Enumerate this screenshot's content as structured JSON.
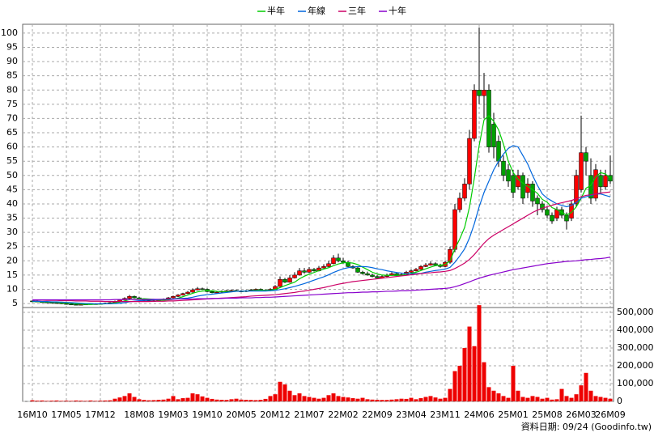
{
  "chart_data": {
    "type": "candlestick",
    "categories": [
      "16M10",
      null,
      null,
      null,
      null,
      null,
      null,
      "17M05",
      null,
      null,
      null,
      null,
      null,
      null,
      "17M12",
      null,
      null,
      null,
      null,
      null,
      null,
      null,
      "18M08",
      null,
      null,
      null,
      null,
      null,
      null,
      "19M03",
      null,
      null,
      null,
      null,
      null,
      null,
      "19M10",
      null,
      null,
      null,
      null,
      null,
      null,
      "20M05",
      null,
      null,
      null,
      null,
      null,
      null,
      "20M12",
      null,
      null,
      null,
      null,
      null,
      null,
      "21M07",
      null,
      null,
      null,
      null,
      null,
      null,
      "22M02",
      null,
      null,
      null,
      null,
      null,
      null,
      "22M09",
      null,
      null,
      null,
      null,
      null,
      null,
      "23M04",
      null,
      null,
      null,
      null,
      null,
      null,
      "23M11",
      null,
      null,
      null,
      null,
      null,
      null,
      "24M06",
      null,
      null,
      null,
      null,
      null,
      null,
      "25M01",
      null,
      null,
      null,
      null,
      null,
      null,
      "25M08",
      null,
      null,
      null,
      null,
      null,
      null,
      "26M03",
      null,
      null,
      null,
      null,
      null,
      "26M09"
    ],
    "open": [
      5.9,
      5.8,
      5.6,
      5.5,
      5.4,
      5.3,
      5.2,
      5.0,
      4.8,
      4.7,
      4.6,
      4.7,
      4.8,
      4.9,
      4.9,
      5.0,
      5.1,
      5.3,
      5.8,
      6.3,
      6.8,
      7.5,
      7.0,
      6.5,
      6.0,
      5.8,
      6.0,
      6.2,
      6.5,
      7.0,
      7.5,
      8.0,
      8.5,
      9.0,
      9.8,
      10.2,
      10.0,
      9.2,
      8.8,
      9.0,
      9.3,
      9.5,
      9.6,
      9.4,
      9.2,
      9.5,
      9.8,
      10.0,
      9.7,
      9.5,
      10.0,
      11.0,
      13.5,
      12.5,
      14.0,
      15.0,
      16.5,
      16.0,
      17.0,
      16.5,
      17.5,
      18.0,
      19.0,
      21.0,
      20.0,
      19.5,
      18.0,
      17.5,
      16.0,
      15.5,
      15.0,
      14.5,
      14.0,
      14.5,
      15.0,
      15.5,
      14.8,
      15.2,
      16.0,
      16.5,
      17.0,
      18.0,
      18.5,
      19.0,
      18.5,
      18.0,
      19.5,
      24.0,
      38.0,
      42.0,
      47.0,
      63.0,
      80.0,
      78.0,
      80.0,
      68.0,
      62.0,
      55.0,
      52.0,
      50.0,
      46.0,
      50.0,
      44.0,
      47.0,
      42.0,
      40.0,
      38.0,
      36.0,
      35.0,
      38.0,
      36.0,
      35.0,
      40.0,
      45.0,
      58.0,
      50.0,
      42.0,
      50.0,
      46.0,
      50.0
    ],
    "high": [
      6.1,
      6.0,
      5.8,
      5.7,
      5.6,
      5.5,
      5.4,
      5.2,
      5.0,
      4.9,
      4.9,
      5.0,
      5.1,
      5.1,
      5.2,
      5.3,
      5.5,
      6.0,
      6.6,
      7.2,
      8.0,
      7.8,
      7.3,
      6.8,
      6.3,
      6.3,
      6.5,
      6.8,
      7.3,
      7.8,
      8.3,
      8.8,
      9.4,
      10.3,
      10.8,
      10.6,
      10.3,
      9.5,
      9.3,
      9.6,
      9.8,
      9.9,
      9.9,
      9.7,
      9.8,
      10.1,
      10.3,
      10.3,
      10.0,
      10.4,
      11.5,
      14.5,
      14.0,
      15.0,
      16.0,
      17.5,
      17.5,
      17.8,
      17.5,
      18.2,
      18.8,
      20.0,
      22.0,
      22.5,
      21.0,
      20.0,
      18.5,
      18.0,
      16.5,
      16.2,
      15.5,
      15.0,
      15.0,
      15.5,
      16.0,
      16.0,
      15.8,
      16.5,
      17.0,
      17.5,
      18.5,
      19.2,
      19.8,
      19.5,
      19.0,
      20.0,
      25.0,
      40.0,
      44.0,
      49.0,
      66.0,
      82.0,
      102.0,
      86.0,
      82.0,
      72.0,
      64.0,
      57.0,
      54.0,
      52.0,
      52.0,
      51.0,
      49.0,
      48.0,
      43.0,
      41.0,
      39.0,
      37.0,
      39.0,
      39.0,
      37.0,
      41.0,
      52.0,
      71.0,
      60.0,
      56.0,
      54.0,
      52.0,
      52.0,
      57.0
    ],
    "low": [
      5.6,
      5.5,
      5.3,
      5.2,
      5.1,
      5.0,
      4.8,
      4.6,
      4.5,
      4.4,
      4.4,
      4.5,
      4.6,
      4.7,
      4.8,
      4.9,
      5.0,
      5.2,
      5.6,
      6.1,
      6.6,
      6.8,
      6.3,
      5.8,
      5.6,
      5.6,
      5.8,
      6.0,
      6.3,
      6.8,
      7.3,
      7.8,
      8.3,
      8.8,
      9.6,
      9.8,
      9.0,
      8.6,
      8.6,
      8.8,
      9.1,
      9.3,
      9.2,
      9.0,
      9.0,
      9.3,
      9.6,
      9.5,
      9.3,
      9.3,
      9.8,
      10.8,
      12.2,
      12.3,
      13.8,
      14.8,
      15.5,
      15.8,
      16.2,
      16.3,
      17.3,
      17.8,
      18.8,
      19.5,
      19.0,
      17.8,
      17.2,
      15.8,
      15.2,
      14.8,
      14.2,
      13.8,
      13.8,
      14.3,
      14.8,
      14.5,
      14.6,
      15.0,
      15.8,
      16.3,
      16.8,
      17.8,
      18.3,
      18.2,
      17.6,
      17.8,
      19.0,
      23.0,
      37.0,
      41.0,
      45.0,
      62.0,
      75.0,
      70.0,
      58.0,
      56.0,
      53.0,
      48.0,
      46.0,
      42.0,
      45.0,
      40.0,
      42.0,
      39.0,
      36.0,
      37.0,
      35.0,
      33.0,
      34.0,
      35.0,
      31.0,
      34.0,
      39.0,
      44.0,
      50.0,
      40.0,
      41.0,
      44.0,
      45.0,
      47.0
    ],
    "close": [
      5.8,
      5.6,
      5.5,
      5.4,
      5.3,
      5.2,
      5.0,
      4.8,
      4.7,
      4.6,
      4.7,
      4.8,
      4.9,
      4.9,
      5.0,
      5.1,
      5.3,
      5.8,
      6.3,
      6.8,
      7.5,
      7.0,
      6.5,
      6.0,
      5.8,
      6.0,
      6.2,
      6.5,
      7.0,
      7.5,
      8.0,
      8.5,
      9.0,
      9.8,
      10.2,
      10.0,
      9.2,
      8.8,
      9.0,
      9.3,
      9.5,
      9.6,
      9.4,
      9.2,
      9.5,
      9.8,
      10.0,
      9.7,
      9.5,
      10.0,
      11.0,
      13.5,
      12.5,
      14.0,
      15.0,
      16.5,
      16.0,
      17.0,
      16.5,
      17.5,
      18.0,
      19.0,
      21.0,
      20.0,
      19.5,
      18.0,
      17.5,
      16.0,
      15.5,
      15.0,
      14.5,
      14.0,
      14.5,
      15.0,
      15.5,
      14.8,
      15.2,
      16.0,
      16.5,
      17.0,
      18.0,
      18.5,
      19.0,
      18.5,
      18.0,
      19.5,
      24.0,
      38.0,
      42.0,
      47.0,
      63.0,
      80.0,
      78.0,
      80.0,
      60.0,
      60.0,
      55.0,
      50.0,
      48.0,
      44.0,
      50.0,
      42.0,
      47.0,
      41.0,
      40.0,
      38.0,
      36.0,
      34.0,
      38.0,
      36.0,
      34.0,
      40.0,
      50.0,
      58.0,
      55.0,
      42.0,
      52.0,
      46.0,
      50.0,
      48.0
    ],
    "up_color": "#ff0000",
    "down_color": "#00a000",
    "ylim": [
      3.6,
      103.1
    ],
    "yticks": [
      5,
      10,
      15,
      20,
      25,
      30,
      35,
      40,
      45,
      50,
      55,
      60,
      65,
      70,
      75,
      80,
      85,
      90,
      95,
      100
    ],
    "grid": true,
    "series": [
      {
        "name": "半年",
        "color": "#00cc00",
        "values": [
          5.7,
          5.7,
          5.6,
          5.6,
          5.5,
          5.5,
          5.3,
          5.2,
          5.1,
          4.9,
          4.8,
          4.7,
          4.7,
          4.8,
          4.8,
          4.9,
          5.0,
          5.2,
          5.5,
          5.9,
          6.4,
          6.5,
          6.6,
          6.7,
          6.6,
          6.5,
          6.2,
          6.2,
          6.3,
          6.5,
          6.9,
          7.4,
          8.0,
          8.6,
          9.1,
          9.4,
          9.5,
          9.5,
          9.3,
          9.2,
          9.2,
          9.2,
          9.3,
          9.3,
          9.4,
          9.5,
          9.6,
          9.7,
          9.6,
          9.7,
          10.0,
          10.6,
          11.3,
          11.9,
          12.5,
          13.7,
          14.6,
          15.3,
          15.9,
          16.6,
          17.1,
          17.6,
          18.3,
          18.9,
          19.3,
          19.4,
          19.2,
          18.7,
          17.8,
          16.9,
          16.0,
          15.4,
          15.0,
          14.9,
          14.9,
          14.9,
          14.9,
          15.3,
          15.6,
          16.0,
          16.6,
          17.2,
          17.8,
          18.3,
          18.5,
          18.7,
          20.0,
          24.2,
          27.7,
          31.7,
          38.8,
          49.0,
          60.5,
          69.5,
          71.0,
          69.0,
          66.0,
          61.0,
          55.0,
          51.0,
          48.7,
          47.3,
          46.2,
          45.0,
          43.7,
          41.6,
          40.6,
          38.7,
          38.0,
          37.0,
          36.1,
          37.0,
          39.0,
          42.0,
          45.5,
          46.5,
          49.5,
          51.0,
          50.5,
          49.0
        ]
      },
      {
        "name": "年線",
        "color": "#0066dd",
        "values": [
          5.8,
          5.8,
          5.7,
          5.7,
          5.6,
          5.6,
          5.5,
          5.4,
          5.3,
          5.2,
          5.1,
          5.0,
          5.0,
          4.9,
          4.9,
          4.9,
          4.9,
          5.0,
          5.1,
          5.3,
          5.6,
          5.8,
          6.0,
          6.1,
          6.2,
          6.3,
          6.4,
          6.5,
          6.6,
          6.6,
          6.7,
          6.8,
          6.9,
          7.2,
          7.6,
          7.9,
          8.1,
          8.3,
          8.5,
          8.7,
          8.9,
          9.1,
          9.3,
          9.3,
          9.4,
          9.4,
          9.4,
          9.4,
          9.4,
          9.5,
          9.6,
          9.9,
          10.2,
          10.6,
          11.0,
          11.5,
          12.0,
          12.6,
          13.2,
          13.8,
          14.4,
          15.1,
          15.9,
          16.6,
          17.2,
          17.6,
          17.8,
          18.0,
          18.0,
          17.9,
          17.6,
          17.2,
          16.9,
          16.5,
          16.2,
          15.9,
          15.7,
          15.5,
          15.4,
          15.5,
          15.6,
          16.0,
          16.3,
          16.6,
          16.8,
          17.1,
          17.7,
          19.5,
          21.7,
          24.2,
          28.0,
          33.0,
          39.0,
          44.0,
          48.0,
          52.0,
          55.0,
          57.5,
          59.5,
          60.5,
          60.0,
          57.0,
          54.0,
          50.0,
          46.5,
          43.5,
          42.0,
          41.0,
          40.0,
          39.5,
          39.0,
          39.5,
          40.5,
          42.0,
          42.5,
          43.0,
          43.5,
          43.5,
          43.0,
          42.5
        ]
      },
      {
        "name": "三年",
        "color": "#cc0066",
        "values": [
          6.2,
          6.2,
          6.2,
          6.1,
          6.1,
          6.1,
          6.0,
          6.0,
          6.0,
          5.9,
          5.9,
          5.9,
          5.8,
          5.8,
          5.8,
          5.7,
          5.7,
          5.7,
          5.7,
          5.7,
          5.7,
          5.7,
          5.7,
          5.7,
          5.7,
          5.8,
          5.8,
          5.8,
          5.9,
          5.9,
          6.0,
          6.1,
          6.2,
          6.3,
          6.4,
          6.5,
          6.6,
          6.7,
          6.8,
          6.9,
          7.0,
          7.1,
          7.2,
          7.3,
          7.4,
          7.6,
          7.7,
          7.8,
          7.9,
          8.0,
          8.1,
          8.3,
          8.5,
          8.7,
          8.9,
          9.2,
          9.4,
          9.7,
          10.0,
          10.3,
          10.6,
          11.0,
          11.4,
          11.8,
          12.1,
          12.4,
          12.7,
          12.9,
          13.1,
          13.3,
          13.5,
          13.7,
          13.9,
          14.1,
          14.3,
          14.5,
          14.7,
          14.9,
          15.1,
          15.3,
          15.5,
          15.7,
          15.8,
          16.0,
          16.1,
          16.3,
          16.6,
          17.3,
          18.2,
          19.2,
          20.5,
          22.2,
          24.2,
          26.2,
          27.8,
          29.0,
          30.0,
          31.0,
          32.0,
          33.0,
          34.0,
          35.0,
          36.0,
          37.0,
          37.8,
          38.5,
          39.0,
          39.5,
          40.0,
          40.4,
          40.8,
          41.2,
          41.8,
          42.5,
          43.0,
          43.2,
          43.5,
          43.8,
          44.0,
          44.2
        ]
      },
      {
        "name": "十年",
        "color": "#8800cc",
        "values": [
          6.3,
          6.3,
          6.3,
          6.3,
          6.3,
          6.3,
          6.3,
          6.3,
          6.3,
          6.3,
          6.3,
          6.3,
          6.3,
          6.3,
          6.3,
          6.3,
          6.3,
          6.4,
          6.4,
          6.4,
          6.4,
          6.4,
          6.4,
          6.4,
          6.4,
          6.5,
          6.5,
          6.5,
          6.5,
          6.5,
          6.6,
          6.6,
          6.6,
          6.6,
          6.7,
          6.7,
          6.7,
          6.8,
          6.8,
          6.8,
          6.9,
          6.9,
          6.9,
          7.0,
          7.0,
          7.0,
          7.1,
          7.1,
          7.2,
          7.2,
          7.3,
          7.4,
          7.5,
          7.6,
          7.7,
          7.8,
          7.9,
          8.0,
          8.1,
          8.2,
          8.3,
          8.4,
          8.5,
          8.6,
          8.7,
          8.8,
          8.8,
          8.9,
          9.0,
          9.0,
          9.1,
          9.1,
          9.2,
          9.3,
          9.3,
          9.4,
          9.5,
          9.5,
          9.6,
          9.7,
          9.8,
          9.9,
          10.0,
          10.1,
          10.2,
          10.3,
          10.5,
          10.9,
          11.4,
          12.0,
          12.6,
          13.3,
          13.9,
          14.4,
          14.9,
          15.3,
          15.7,
          16.1,
          16.5,
          16.9,
          17.2,
          17.5,
          17.8,
          18.1,
          18.4,
          18.7,
          19.0,
          19.2,
          19.4,
          19.6,
          19.8,
          19.9,
          20.0,
          20.2,
          20.4,
          20.5,
          20.7,
          20.8,
          21.0,
          21.3
        ]
      }
    ],
    "volume": {
      "color": "#ee0000",
      "y2lim": [
        0,
        527000
      ],
      "y2ticks": [
        {
          "value": 0,
          "label": "0"
        },
        {
          "value": 100000,
          "label": "100,000"
        },
        {
          "value": 200000,
          "label": "200,000"
        },
        {
          "value": 300000,
          "label": "300,000"
        },
        {
          "value": 400000,
          "label": "400,000"
        },
        {
          "value": 500000,
          "label": "500,000"
        }
      ],
      "values": [
        6000,
        4000,
        5000,
        3000,
        4000,
        5000,
        3000,
        4000,
        3000,
        5000,
        4000,
        3000,
        5000,
        3000,
        4000,
        5000,
        6000,
        15000,
        22000,
        30000,
        45000,
        25000,
        12000,
        8000,
        6000,
        7000,
        9000,
        10000,
        15000,
        30000,
        12000,
        18000,
        20000,
        45000,
        40000,
        28000,
        20000,
        14000,
        10000,
        9000,
        8000,
        12000,
        15000,
        10000,
        9000,
        8000,
        7000,
        9000,
        14000,
        30000,
        40000,
        110000,
        95000,
        60000,
        35000,
        45000,
        30000,
        25000,
        20000,
        15000,
        20000,
        35000,
        45000,
        30000,
        25000,
        22000,
        18000,
        15000,
        20000,
        12000,
        10000,
        9000,
        8000,
        8000,
        10000,
        12000,
        15000,
        14000,
        20000,
        12000,
        18000,
        25000,
        30000,
        22000,
        15000,
        20000,
        70000,
        170000,
        200000,
        300000,
        420000,
        310000,
        540000,
        220000,
        80000,
        60000,
        45000,
        30000,
        20000,
        200000,
        60000,
        25000,
        20000,
        30000,
        25000,
        15000,
        20000,
        10000,
        12000,
        70000,
        30000,
        20000,
        40000,
        90000,
        160000,
        60000,
        30000,
        25000,
        20000,
        15000
      ]
    },
    "note": "資料日期: 09/24  (Goodinfo.tw)"
  }
}
